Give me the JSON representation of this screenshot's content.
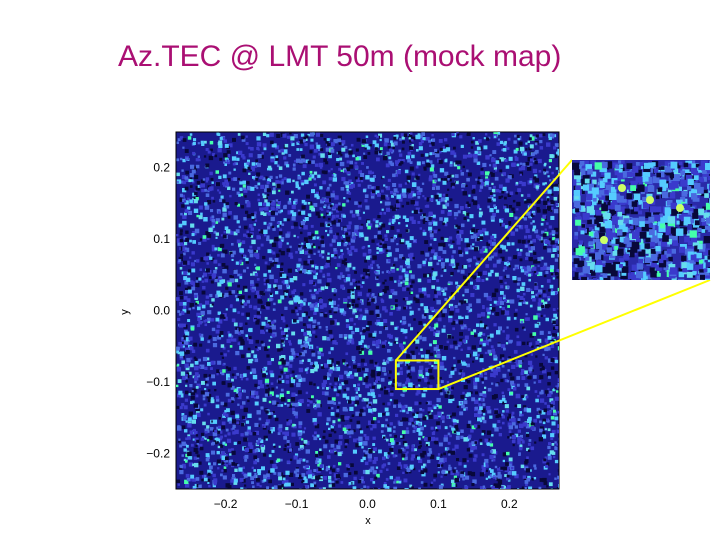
{
  "title": "Az.TEC @ LMT 50m (mock map)",
  "colors": {
    "title": "#aa0f73",
    "map_base": "#1a1a8e",
    "speckle_light": "#55ccff",
    "speckle_green": "#44ffaa",
    "highlight": "#ffff00"
  },
  "chart_data": {
    "type": "heatmap",
    "title": "",
    "xlabel": "x",
    "ylabel": "y",
    "xlim": [
      -0.27,
      0.27
    ],
    "ylim": [
      -0.25,
      0.25
    ],
    "x_ticks": [
      "−0.2",
      "−0.1",
      "0.0",
      "0.1",
      "0.2"
    ],
    "y_ticks": [
      "0.2",
      "0.1",
      "0.0",
      "−0.1",
      "−0.2"
    ],
    "x_tick_values": [
      -0.2,
      -0.1,
      0.0,
      0.1,
      0.2
    ],
    "y_tick_values": [
      0.2,
      0.1,
      0.0,
      -0.1,
      -0.2
    ],
    "zoom_region": {
      "x": [
        0.04,
        0.1
      ],
      "y": [
        -0.11,
        -0.07
      ]
    },
    "colormap": "blue-cyan noise"
  }
}
